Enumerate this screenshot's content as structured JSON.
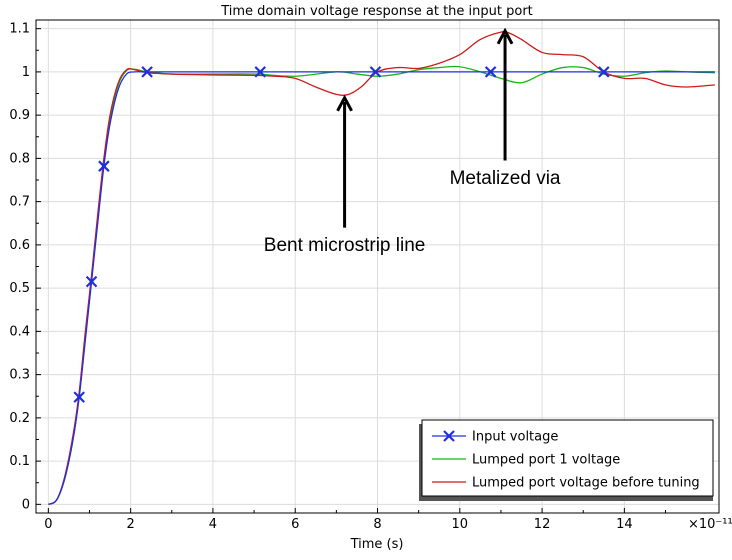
{
  "chart_data": {
    "type": "line",
    "title": "Time domain voltage response at the input port",
    "xlabel": "Time (s)",
    "ylabel": "",
    "x_scale_label": "×10⁻¹¹",
    "xlim": [
      -0.3,
      16.3
    ],
    "ylim": [
      -0.02,
      1.12
    ],
    "x_ticks": [
      0,
      2,
      4,
      6,
      8,
      10,
      12,
      14
    ],
    "x_tick_labels": [
      "0",
      "2",
      "4",
      "6",
      "8",
      "10",
      "12",
      "14"
    ],
    "y_ticks": [
      0,
      0.1,
      0.2,
      0.3,
      0.4,
      0.5,
      0.6,
      0.7,
      0.8,
      0.9,
      1,
      1.1
    ],
    "y_tick_labels": [
      "0",
      "0.1",
      "0.2",
      "0.3",
      "0.4",
      "0.5",
      "0.6",
      "0.7",
      "0.8",
      "0.9",
      "1",
      "1.1"
    ],
    "grid": true,
    "legend_position": "bottom-right",
    "series": [
      {
        "name": "Input voltage",
        "color": "#1f2fe0",
        "marker": "asterisk",
        "x": [
          0,
          0.2,
          0.4,
          0.6,
          0.75,
          0.9,
          1.05,
          1.2,
          1.35,
          1.5,
          1.7,
          1.9,
          2.1,
          2.4,
          3,
          4,
          5.15,
          6,
          7,
          7.95,
          9,
          10,
          10.75,
          12,
          13.5,
          15,
          16.2
        ],
        "y": [
          0,
          0.01,
          0.06,
          0.15,
          0.248,
          0.38,
          0.515,
          0.65,
          0.782,
          0.88,
          0.96,
          0.995,
          1.0,
          1.0,
          1.0,
          1.0,
          1.0,
          1.0,
          1.0,
          1.0,
          1.0,
          1.0,
          1.0,
          1.0,
          1.0,
          1.0,
          1.0
        ],
        "marker_x": [
          0.75,
          1.05,
          1.35,
          2.4,
          5.15,
          7.95,
          10.75,
          13.5
        ],
        "marker_y": [
          0.248,
          0.515,
          0.782,
          1.0,
          1.0,
          1.0,
          1.0,
          1.0
        ]
      },
      {
        "name": "Lumped port 1 voltage",
        "color": "#19b419",
        "x": [
          0,
          0.2,
          0.4,
          0.6,
          0.75,
          0.9,
          1.05,
          1.2,
          1.35,
          1.5,
          1.7,
          1.9,
          2.1,
          2.4,
          3,
          4,
          5,
          6,
          7,
          7.5,
          8,
          8.5,
          9,
          9.5,
          10,
          10.5,
          11,
          11.5,
          12,
          12.5,
          13,
          13.5,
          14,
          14.5,
          15,
          15.5,
          16.2
        ],
        "y": [
          0,
          0.01,
          0.06,
          0.15,
          0.25,
          0.39,
          0.52,
          0.66,
          0.79,
          0.89,
          0.97,
          1.003,
          1.006,
          1.0,
          0.995,
          0.995,
          0.995,
          0.99,
          1.0,
          0.995,
          0.99,
          0.995,
          1.005,
          1.01,
          1.012,
          1.0,
          0.985,
          0.975,
          0.995,
          1.01,
          1.01,
          0.995,
          0.99,
          0.998,
          1.002,
          1.0,
          0.998
        ]
      },
      {
        "name": "Lumped port voltage before tuning",
        "color": "#cc1b1b",
        "x": [
          0,
          0.2,
          0.4,
          0.6,
          0.75,
          0.9,
          1.05,
          1.2,
          1.35,
          1.5,
          1.7,
          1.9,
          2.1,
          2.4,
          3,
          4,
          5,
          5.5,
          6,
          6.5,
          7,
          7.3,
          7.6,
          8,
          8.5,
          9,
          9.5,
          10,
          10.5,
          11,
          11.2,
          11.5,
          12,
          12.5,
          13,
          13.5,
          14,
          14.5,
          15,
          15.5,
          16.2
        ],
        "y": [
          0,
          0.01,
          0.065,
          0.16,
          0.26,
          0.4,
          0.53,
          0.67,
          0.8,
          0.9,
          0.975,
          1.005,
          1.005,
          0.998,
          0.995,
          0.993,
          0.992,
          0.99,
          0.985,
          0.965,
          0.948,
          0.948,
          0.965,
          1.0,
          1.01,
          1.008,
          1.02,
          1.04,
          1.075,
          1.092,
          1.09,
          1.075,
          1.045,
          1.04,
          1.035,
          1.0,
          0.985,
          0.985,
          0.97,
          0.965,
          0.97
        ]
      }
    ],
    "annotations": [
      {
        "text": "Bent microstrip line",
        "arrow_tip": [
          7.2,
          0.94
        ],
        "arrow_tail": [
          7.2,
          0.64
        ],
        "label_at": [
          7.2,
          0.6
        ]
      },
      {
        "text": "Metalized via",
        "arrow_tip": [
          11.1,
          1.095
        ],
        "arrow_tail": [
          11.1,
          0.795
        ],
        "label_at": [
          11.1,
          0.755
        ]
      }
    ]
  }
}
